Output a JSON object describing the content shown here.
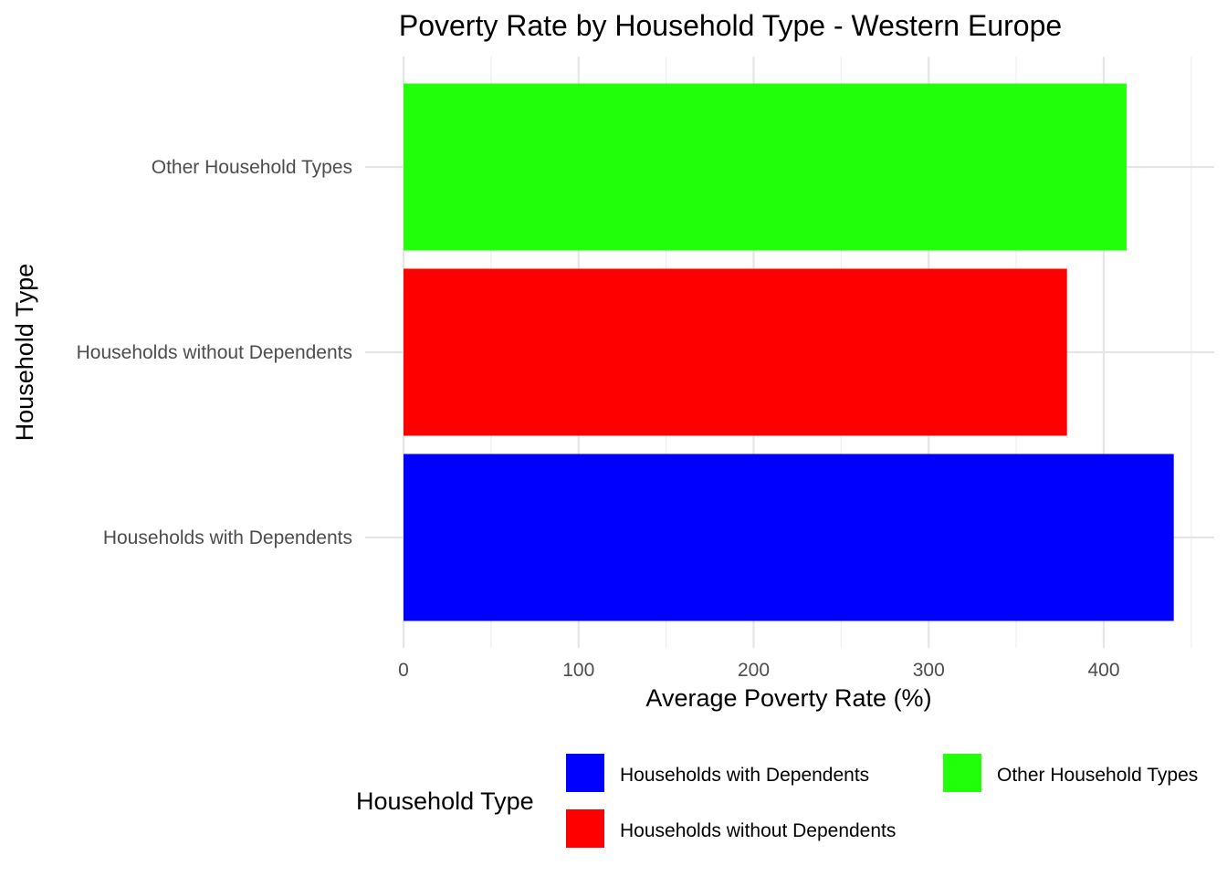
{
  "chart_data": {
    "type": "bar",
    "orientation": "horizontal",
    "title": "Poverty Rate by Household Type - Western Europe",
    "xlabel": "Average Poverty Rate (%)",
    "ylabel": "Household Type",
    "categories": [
      "Households with Dependents",
      "Households without Dependents",
      "Other Household Types"
    ],
    "values": [
      440,
      379,
      413
    ],
    "colors": [
      "#0000ff",
      "#ff0000",
      "#22ff0a"
    ],
    "xlim": [
      0,
      460
    ],
    "x_ticks": [
      0,
      100,
      200,
      300,
      400
    ],
    "x_tick_labels": [
      "0",
      "100",
      "200",
      "300",
      "400"
    ],
    "grid": true,
    "legend": {
      "title": "Household Type",
      "position": "bottom",
      "entries": [
        {
          "label": "Households with Dependents",
          "color": "#0000ff"
        },
        {
          "label": "Households without Dependents",
          "color": "#ff0000"
        },
        {
          "label": "Other Household Types",
          "color": "#22ff0a"
        }
      ]
    }
  }
}
